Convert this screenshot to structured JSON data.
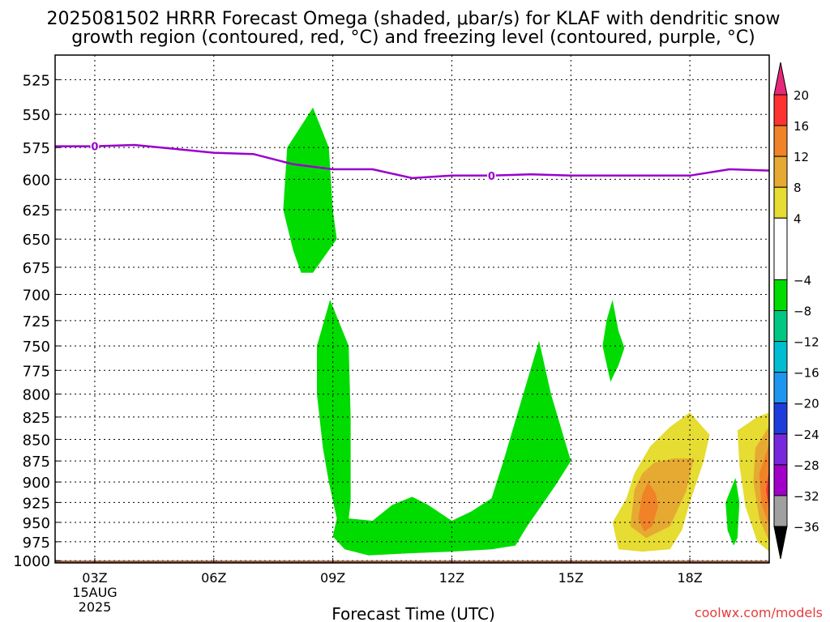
{
  "chart_data": {
    "type": "heatmap",
    "title_line1": "2025081502 HRRR Forecast Omega (shaded, μbar/s) for KLAF with dendritic snow",
    "title_line2": "growth region (contoured, red, °C) and freezing level (contoured, purple, °C)",
    "xlabel": "Forecast Time (UTC)",
    "ylabel": "",
    "watermark": "coolwx.com/models",
    "x_date_line1": "15AUG",
    "x_date_line2": "2025",
    "xlim": [
      2,
      20
    ],
    "ylim": [
      1003,
      508
    ],
    "y_scale": "log-pressure",
    "grid": true,
    "xticks": [
      {
        "v": 3,
        "label": "03Z"
      },
      {
        "v": 6,
        "label": "06Z"
      },
      {
        "v": 9,
        "label": "09Z"
      },
      {
        "v": 12,
        "label": "12Z"
      },
      {
        "v": 15,
        "label": "15Z"
      },
      {
        "v": 18,
        "label": "18Z"
      }
    ],
    "yticks": [
      525,
      550,
      575,
      600,
      625,
      650,
      675,
      700,
      725,
      750,
      775,
      800,
      825,
      850,
      875,
      900,
      925,
      950,
      975,
      1000
    ],
    "colorbar": {
      "ticks": [
        "20",
        "16",
        "12",
        "8",
        "4",
        "−4",
        "−8",
        "−12",
        "−16",
        "−20",
        "−24",
        "−28",
        "−32",
        "−36"
      ],
      "bins": [
        {
          "from": 16,
          "to": 20,
          "color": "#ff3232"
        },
        {
          "from": 12,
          "to": 16,
          "color": "#f08228"
        },
        {
          "from": 8,
          "to": 12,
          "color": "#e6aa32"
        },
        {
          "from": 4,
          "to": 8,
          "color": "#e6dc32"
        },
        {
          "from": -4,
          "to": 4,
          "color": "#ffffff"
        },
        {
          "from": -8,
          "to": -4,
          "color": "#00dc00"
        },
        {
          "from": -12,
          "to": -8,
          "color": "#00c882"
        },
        {
          "from": -16,
          "to": -12,
          "color": "#00bed2"
        },
        {
          "from": -20,
          "to": -16,
          "color": "#1e96f0"
        },
        {
          "from": -24,
          "to": -20,
          "color": "#1e3cdc"
        },
        {
          "from": -28,
          "to": -24,
          "color": "#7828dc"
        },
        {
          "from": -32,
          "to": -28,
          "color": "#a000c8"
        },
        {
          "from": -36,
          "to": -32,
          "color": "#a0a0a0"
        }
      ],
      "over_color": "#e6287a",
      "under_color": "#000000"
    },
    "ground_color": "#9b5a3c",
    "ground_pressure": 1000,
    "freezing_level": {
      "label": "0",
      "color": "#9900cc",
      "label_points": [
        {
          "t": 3,
          "p": 574
        },
        {
          "t": 13,
          "p": 597
        }
      ],
      "points": [
        {
          "t": 2,
          "p": 574
        },
        {
          "t": 3,
          "p": 574
        },
        {
          "t": 4,
          "p": 573
        },
        {
          "t": 5,
          "p": 576
        },
        {
          "t": 6,
          "p": 579
        },
        {
          "t": 7,
          "p": 580
        },
        {
          "t": 8,
          "p": 588
        },
        {
          "t": 9,
          "p": 592
        },
        {
          "t": 10,
          "p": 592
        },
        {
          "t": 11,
          "p": 599
        },
        {
          "t": 12,
          "p": 597
        },
        {
          "t": 13,
          "p": 597
        },
        {
          "t": 14,
          "p": 596
        },
        {
          "t": 15,
          "p": 597
        },
        {
          "t": 16,
          "p": 597
        },
        {
          "t": 17,
          "p": 597
        },
        {
          "t": 18,
          "p": 597
        },
        {
          "t": 19,
          "p": 592
        },
        {
          "t": 20,
          "p": 593
        }
      ]
    },
    "omega_regions": [
      {
        "value": "-4 to -8",
        "color": "#00dc00",
        "points": [
          {
            "t": 8.5,
            "p": 545
          },
          {
            "t": 8.9,
            "p": 575
          },
          {
            "t": 9.0,
            "p": 625
          },
          {
            "t": 9.1,
            "p": 650
          },
          {
            "t": 8.5,
            "p": 680
          },
          {
            "t": 8.2,
            "p": 680
          },
          {
            "t": 8.0,
            "p": 660
          },
          {
            "t": 7.75,
            "p": 625
          },
          {
            "t": 7.85,
            "p": 575
          }
        ]
      },
      {
        "value": "-4 to -8",
        "color": "#00dc00",
        "points": [
          {
            "t": 8.93,
            "p": 705
          },
          {
            "t": 9.4,
            "p": 750
          },
          {
            "t": 9.45,
            "p": 825
          },
          {
            "t": 9.45,
            "p": 875
          },
          {
            "t": 9.45,
            "p": 925
          },
          {
            "t": 9.4,
            "p": 945
          },
          {
            "t": 10.0,
            "p": 948
          },
          {
            "t": 10.5,
            "p": 928
          },
          {
            "t": 11.0,
            "p": 918
          },
          {
            "t": 11.4,
            "p": 928
          },
          {
            "t": 12.0,
            "p": 948
          },
          {
            "t": 12.5,
            "p": 936
          },
          {
            "t": 13.0,
            "p": 920
          },
          {
            "t": 13.3,
            "p": 875
          },
          {
            "t": 13.8,
            "p": 800
          },
          {
            "t": 14.2,
            "p": 745
          },
          {
            "t": 14.5,
            "p": 800
          },
          {
            "t": 15.0,
            "p": 875
          },
          {
            "t": 14.6,
            "p": 905
          },
          {
            "t": 13.9,
            "p": 955
          },
          {
            "t": 13.6,
            "p": 980
          },
          {
            "t": 13.0,
            "p": 985
          },
          {
            "t": 12.0,
            "p": 988
          },
          {
            "t": 11.0,
            "p": 990
          },
          {
            "t": 9.9,
            "p": 993
          },
          {
            "t": 9.3,
            "p": 985
          },
          {
            "t": 9.0,
            "p": 968
          },
          {
            "t": 9.1,
            "p": 945
          },
          {
            "t": 8.9,
            "p": 900
          },
          {
            "t": 8.75,
            "p": 860
          },
          {
            "t": 8.6,
            "p": 800
          },
          {
            "t": 8.6,
            "p": 750
          }
        ]
      },
      {
        "value": "-4 to -8",
        "color": "#00dc00",
        "points": [
          {
            "t": 16.05,
            "p": 705
          },
          {
            "t": 16.2,
            "p": 735
          },
          {
            "t": 16.35,
            "p": 752
          },
          {
            "t": 16.2,
            "p": 770
          },
          {
            "t": 16.0,
            "p": 787
          },
          {
            "t": 15.8,
            "p": 750
          },
          {
            "t": 15.9,
            "p": 725
          }
        ]
      },
      {
        "value": "-4 to -8",
        "color": "#00dc00",
        "points": [
          {
            "t": 19.15,
            "p": 895
          },
          {
            "t": 19.25,
            "p": 925
          },
          {
            "t": 19.2,
            "p": 970
          },
          {
            "t": 19.1,
            "p": 980
          },
          {
            "t": 18.95,
            "p": 960
          },
          {
            "t": 18.9,
            "p": 925
          }
        ]
      },
      {
        "value": "4 to 8",
        "color": "#e6dc32",
        "points": [
          {
            "t": 18.0,
            "p": 820
          },
          {
            "t": 18.5,
            "p": 845
          },
          {
            "t": 18.35,
            "p": 875
          },
          {
            "t": 18.0,
            "p": 925
          },
          {
            "t": 17.8,
            "p": 960
          },
          {
            "t": 17.5,
            "p": 985
          },
          {
            "t": 16.8,
            "p": 988
          },
          {
            "t": 16.2,
            "p": 985
          },
          {
            "t": 16.05,
            "p": 950
          },
          {
            "t": 16.4,
            "p": 920
          },
          {
            "t": 16.6,
            "p": 890
          },
          {
            "t": 17.0,
            "p": 858
          },
          {
            "t": 17.5,
            "p": 836
          }
        ]
      },
      {
        "value": "8 to 12",
        "color": "#e6aa32",
        "points": [
          {
            "t": 17.1,
            "p": 877
          },
          {
            "t": 17.6,
            "p": 872
          },
          {
            "t": 18.1,
            "p": 872
          },
          {
            "t": 17.9,
            "p": 912
          },
          {
            "t": 17.5,
            "p": 955
          },
          {
            "t": 16.9,
            "p": 970
          },
          {
            "t": 16.5,
            "p": 955
          },
          {
            "t": 16.6,
            "p": 910
          },
          {
            "t": 16.8,
            "p": 890
          }
        ]
      },
      {
        "value": "12 to 16",
        "color": "#f08228",
        "points": [
          {
            "t": 16.95,
            "p": 900
          },
          {
            "t": 17.15,
            "p": 915
          },
          {
            "t": 17.2,
            "p": 930
          },
          {
            "t": 17.05,
            "p": 955
          },
          {
            "t": 16.85,
            "p": 962
          },
          {
            "t": 16.7,
            "p": 945
          },
          {
            "t": 16.8,
            "p": 915
          }
        ]
      },
      {
        "value": "4 to 8",
        "color": "#e6dc32",
        "points": [
          {
            "t": 20.0,
            "p": 820
          },
          {
            "t": 20.0,
            "p": 988
          },
          {
            "t": 19.7,
            "p": 975
          },
          {
            "t": 19.4,
            "p": 930
          },
          {
            "t": 19.25,
            "p": 880
          },
          {
            "t": 19.2,
            "p": 840
          },
          {
            "t": 19.7,
            "p": 825
          }
        ]
      },
      {
        "value": "8 to 12",
        "color": "#e6aa32",
        "points": [
          {
            "t": 20.0,
            "p": 835
          },
          {
            "t": 20.0,
            "p": 975
          },
          {
            "t": 19.75,
            "p": 945
          },
          {
            "t": 19.6,
            "p": 900
          },
          {
            "t": 19.65,
            "p": 860
          }
        ]
      },
      {
        "value": "12 to 16",
        "color": "#f08228",
        "points": [
          {
            "t": 20.0,
            "p": 855
          },
          {
            "t": 20.0,
            "p": 955
          },
          {
            "t": 19.8,
            "p": 925
          },
          {
            "t": 19.75,
            "p": 890
          }
        ]
      },
      {
        "value": "16 to 20",
        "color": "#ff3232",
        "points": [
          {
            "t": 20.0,
            "p": 885
          },
          {
            "t": 20.0,
            "p": 935
          },
          {
            "t": 19.92,
            "p": 910
          }
        ]
      }
    ]
  }
}
